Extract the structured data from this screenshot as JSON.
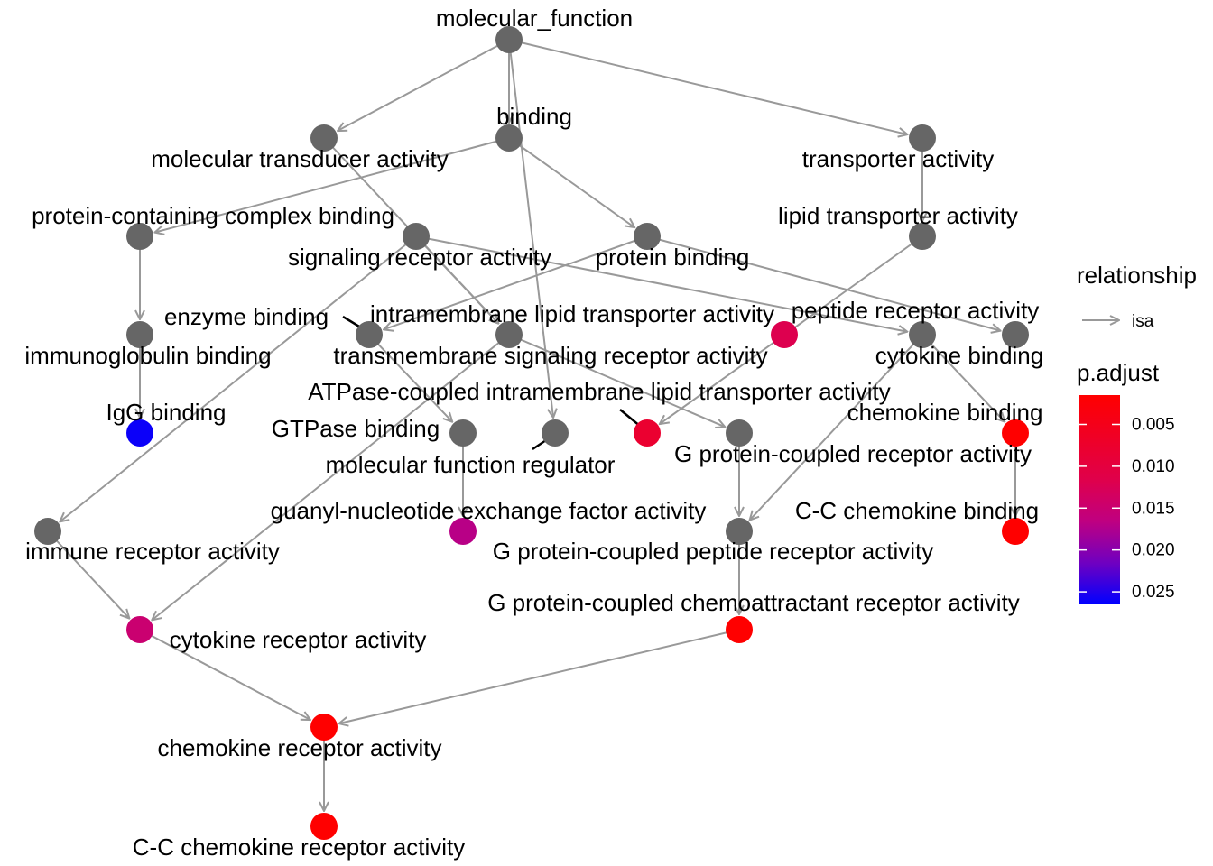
{
  "colors": {
    "edge": "#999999",
    "gray_node": "#666666",
    "leader": "#000000",
    "gradient_low": "#ff0000",
    "gradient_mid": "#c00080",
    "gradient_high": "#0000ff"
  },
  "nodes": [
    {
      "id": "mf",
      "label": "molecular_function",
      "padj": null
    },
    {
      "id": "mta",
      "label": "molecular transducer activity",
      "padj": null
    },
    {
      "id": "bind",
      "label": "binding",
      "padj": null
    },
    {
      "id": "ta",
      "label": "transporter activity",
      "padj": null
    },
    {
      "id": "pccb",
      "label": "protein-containing complex binding",
      "padj": null
    },
    {
      "id": "sra",
      "label": "signaling receptor activity",
      "padj": null
    },
    {
      "id": "pb",
      "label": "protein binding",
      "padj": null
    },
    {
      "id": "lta",
      "label": "lipid transporter activity",
      "padj": null
    },
    {
      "id": "ib",
      "label": "immunoglobulin binding",
      "padj": null
    },
    {
      "id": "eb",
      "label": "enzyme binding",
      "padj": null
    },
    {
      "id": "tsra",
      "label": "transmembrane signaling receptor activity",
      "padj": null
    },
    {
      "id": "ilta",
      "label": "intramembrane lipid transporter activity",
      "padj": 0.012
    },
    {
      "id": "cb",
      "label": "cytokine binding",
      "padj": null
    },
    {
      "id": "pra",
      "label": "peptide receptor activity",
      "padj": null
    },
    {
      "id": "igg",
      "label": "IgG binding",
      "padj": 0.026
    },
    {
      "id": "gtpb",
      "label": "GTPase binding",
      "padj": null
    },
    {
      "id": "mfr",
      "label": "molecular function regulator",
      "padj": null
    },
    {
      "id": "atpase",
      "label": "ATPase-coupled intramembrane lipid transporter activity",
      "padj": 0.008
    },
    {
      "id": "gpcr",
      "label": "G protein-coupled receptor activity",
      "padj": null
    },
    {
      "id": "chb",
      "label": "chemokine binding",
      "padj": 0.001
    },
    {
      "id": "gnefa",
      "label": "guanyl-nucleotide exchange factor activity",
      "padj": 0.017
    },
    {
      "id": "gpcpra",
      "label": "G protein-coupled peptide receptor activity",
      "padj": null
    },
    {
      "id": "ccchb",
      "label": "C-C chemokine binding",
      "padj": 0.001
    },
    {
      "id": "ira",
      "label": "immune receptor activity",
      "padj": null
    },
    {
      "id": "gpccra",
      "label": "G protein-coupled chemoattractant receptor activity",
      "padj": 0.001
    },
    {
      "id": "cra",
      "label": "cytokine receptor activity",
      "padj": 0.015
    },
    {
      "id": "chra",
      "label": "chemokine receptor activity",
      "padj": 0.001
    },
    {
      "id": "ccchra",
      "label": "C-C chemokine receptor activity",
      "padj": 0.001
    }
  ],
  "edges": [
    {
      "from": "mf",
      "to": "mta"
    },
    {
      "from": "mf",
      "to": "bind"
    },
    {
      "from": "mf",
      "to": "ta"
    },
    {
      "from": "mf",
      "to": "mfr"
    },
    {
      "from": "bind",
      "to": "pccb"
    },
    {
      "from": "bind",
      "to": "pb"
    },
    {
      "from": "mta",
      "to": "tsra"
    },
    {
      "from": "ta",
      "to": "lta"
    },
    {
      "from": "pccb",
      "to": "ib"
    },
    {
      "from": "ib",
      "to": "igg"
    },
    {
      "from": "pb",
      "to": "eb"
    },
    {
      "from": "pb",
      "to": "pra"
    },
    {
      "from": "sra",
      "to": "cb"
    },
    {
      "from": "sra",
      "to": "tsra"
    },
    {
      "from": "sra",
      "to": "ira"
    },
    {
      "from": "lta",
      "to": "atpase"
    },
    {
      "from": "eb",
      "to": "gtpb"
    },
    {
      "from": "tsra",
      "to": "gpcr"
    },
    {
      "from": "tsra",
      "to": "cra"
    },
    {
      "from": "cb",
      "to": "gpcpra"
    },
    {
      "from": "cb",
      "to": "chb"
    },
    {
      "from": "gpcr",
      "to": "gpcpra"
    },
    {
      "from": "gtpb",
      "to": "gnefa"
    },
    {
      "from": "chb",
      "to": "ccchb"
    },
    {
      "from": "gpcpra",
      "to": "gpccra"
    },
    {
      "from": "ira",
      "to": "cra"
    },
    {
      "from": "cra",
      "to": "chra"
    },
    {
      "from": "gpccra",
      "to": "chra"
    },
    {
      "from": "chra",
      "to": "ccchra"
    }
  ],
  "legend": {
    "relationship_title": "relationship",
    "relationship_item": "isa",
    "padj_title": "p.adjust",
    "padj_min": 0.0015,
    "padj_max": 0.0265,
    "padj_ticks": [
      {
        "value": 0.005,
        "label": "0.005"
      },
      {
        "value": 0.01,
        "label": "0.010"
      },
      {
        "value": 0.015,
        "label": "0.015"
      },
      {
        "value": 0.02,
        "label": "0.020"
      },
      {
        "value": 0.025,
        "label": "0.025"
      }
    ]
  }
}
